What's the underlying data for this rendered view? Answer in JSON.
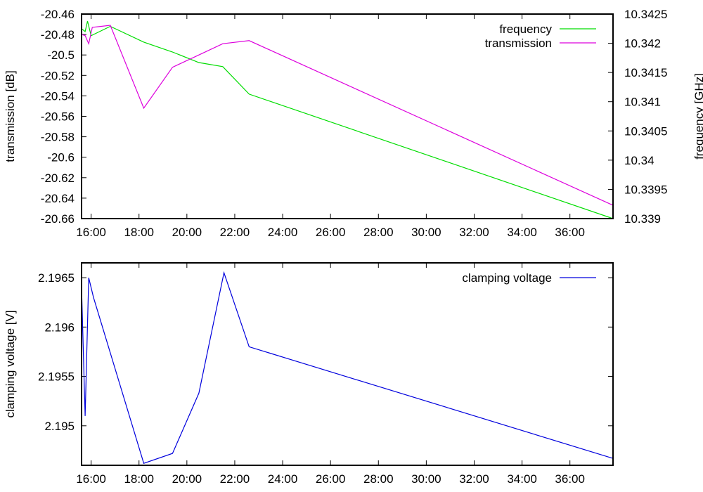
{
  "chart_data": [
    {
      "type": "line",
      "ylabel": "transmission [dB]",
      "y2label": "frequency [GHz]",
      "xticks": [
        "16:00",
        "18:00",
        "20:00",
        "22:00",
        "24:00",
        "26:00",
        "28:00",
        "30:00",
        "32:00",
        "34:00",
        "36:00"
      ],
      "xtick_values": [
        16,
        18,
        20,
        22,
        24,
        26,
        28,
        30,
        32,
        34,
        36
      ],
      "xlim": [
        15.6,
        37.8
      ],
      "ylim": [
        -20.66,
        -20.46
      ],
      "yticks": [
        "-20.46",
        "-20.48",
        "-20.5",
        "-20.52",
        "-20.54",
        "-20.56",
        "-20.58",
        "-20.6",
        "-20.62",
        "-20.64",
        "-20.66"
      ],
      "ytick_values": [
        -20.46,
        -20.48,
        -20.5,
        -20.52,
        -20.54,
        -20.56,
        -20.58,
        -20.6,
        -20.62,
        -20.64,
        -20.66
      ],
      "y2lim": [
        10.339,
        10.3425
      ],
      "y2ticks": [
        "10.3425",
        "10.342",
        "10.3415",
        "10.341",
        "10.3405",
        "10.34",
        "10.3395",
        "10.339"
      ],
      "y2tick_values": [
        10.3425,
        10.342,
        10.3415,
        10.341,
        10.3405,
        10.34,
        10.3395,
        10.339
      ],
      "legend_position": "top-right",
      "series": [
        {
          "name": "frequency",
          "axis": "y2",
          "color": "#00dd00",
          "x": [
            15.6,
            15.75,
            15.85,
            16.0,
            16.8,
            18.2,
            19.4,
            20.5,
            21.5,
            22.6,
            37.8
          ],
          "y": [
            10.34225,
            10.3422,
            10.34238,
            10.34213,
            10.34229,
            10.34202,
            10.34185,
            10.34167,
            10.3416,
            10.34113,
            10.339
          ]
        },
        {
          "name": "transmission",
          "axis": "y1",
          "color": "#dd00dd",
          "x": [
            15.6,
            15.75,
            15.9,
            16.05,
            16.8,
            18.2,
            19.4,
            20.5,
            21.5,
            22.6,
            37.8
          ],
          "y": [
            -20.48,
            -20.481,
            -20.489,
            -20.473,
            -20.471,
            -20.552,
            -20.512,
            -20.5,
            -20.489,
            -20.486,
            -20.647
          ]
        }
      ]
    },
    {
      "type": "line",
      "ylabel": "clamping voltage [V]",
      "xticks": [
        "16:00",
        "18:00",
        "20:00",
        "22:00",
        "24:00",
        "26:00",
        "28:00",
        "30:00",
        "32:00",
        "34:00",
        "36:00"
      ],
      "xtick_values": [
        16,
        18,
        20,
        22,
        24,
        26,
        28,
        30,
        32,
        34,
        36
      ],
      "xlim": [
        15.6,
        37.8
      ],
      "ylim": [
        2.1946,
        2.19665
      ],
      "yticks": [
        "2.1965",
        "2.196",
        "2.1955",
        "2.195"
      ],
      "ytick_values": [
        2.1965,
        2.196,
        2.1955,
        2.195
      ],
      "legend_position": "top-right",
      "series": [
        {
          "name": "clamping voltage",
          "axis": "y1",
          "color": "#0000dd",
          "x": [
            15.6,
            15.75,
            15.9,
            16.1,
            18.2,
            19.4,
            20.5,
            21.55,
            22.6,
            37.8
          ],
          "y": [
            2.1964,
            2.1951,
            2.1965,
            2.1963,
            2.19462,
            2.19472,
            2.19533,
            2.19655,
            2.1958,
            2.19467
          ]
        }
      ]
    }
  ]
}
